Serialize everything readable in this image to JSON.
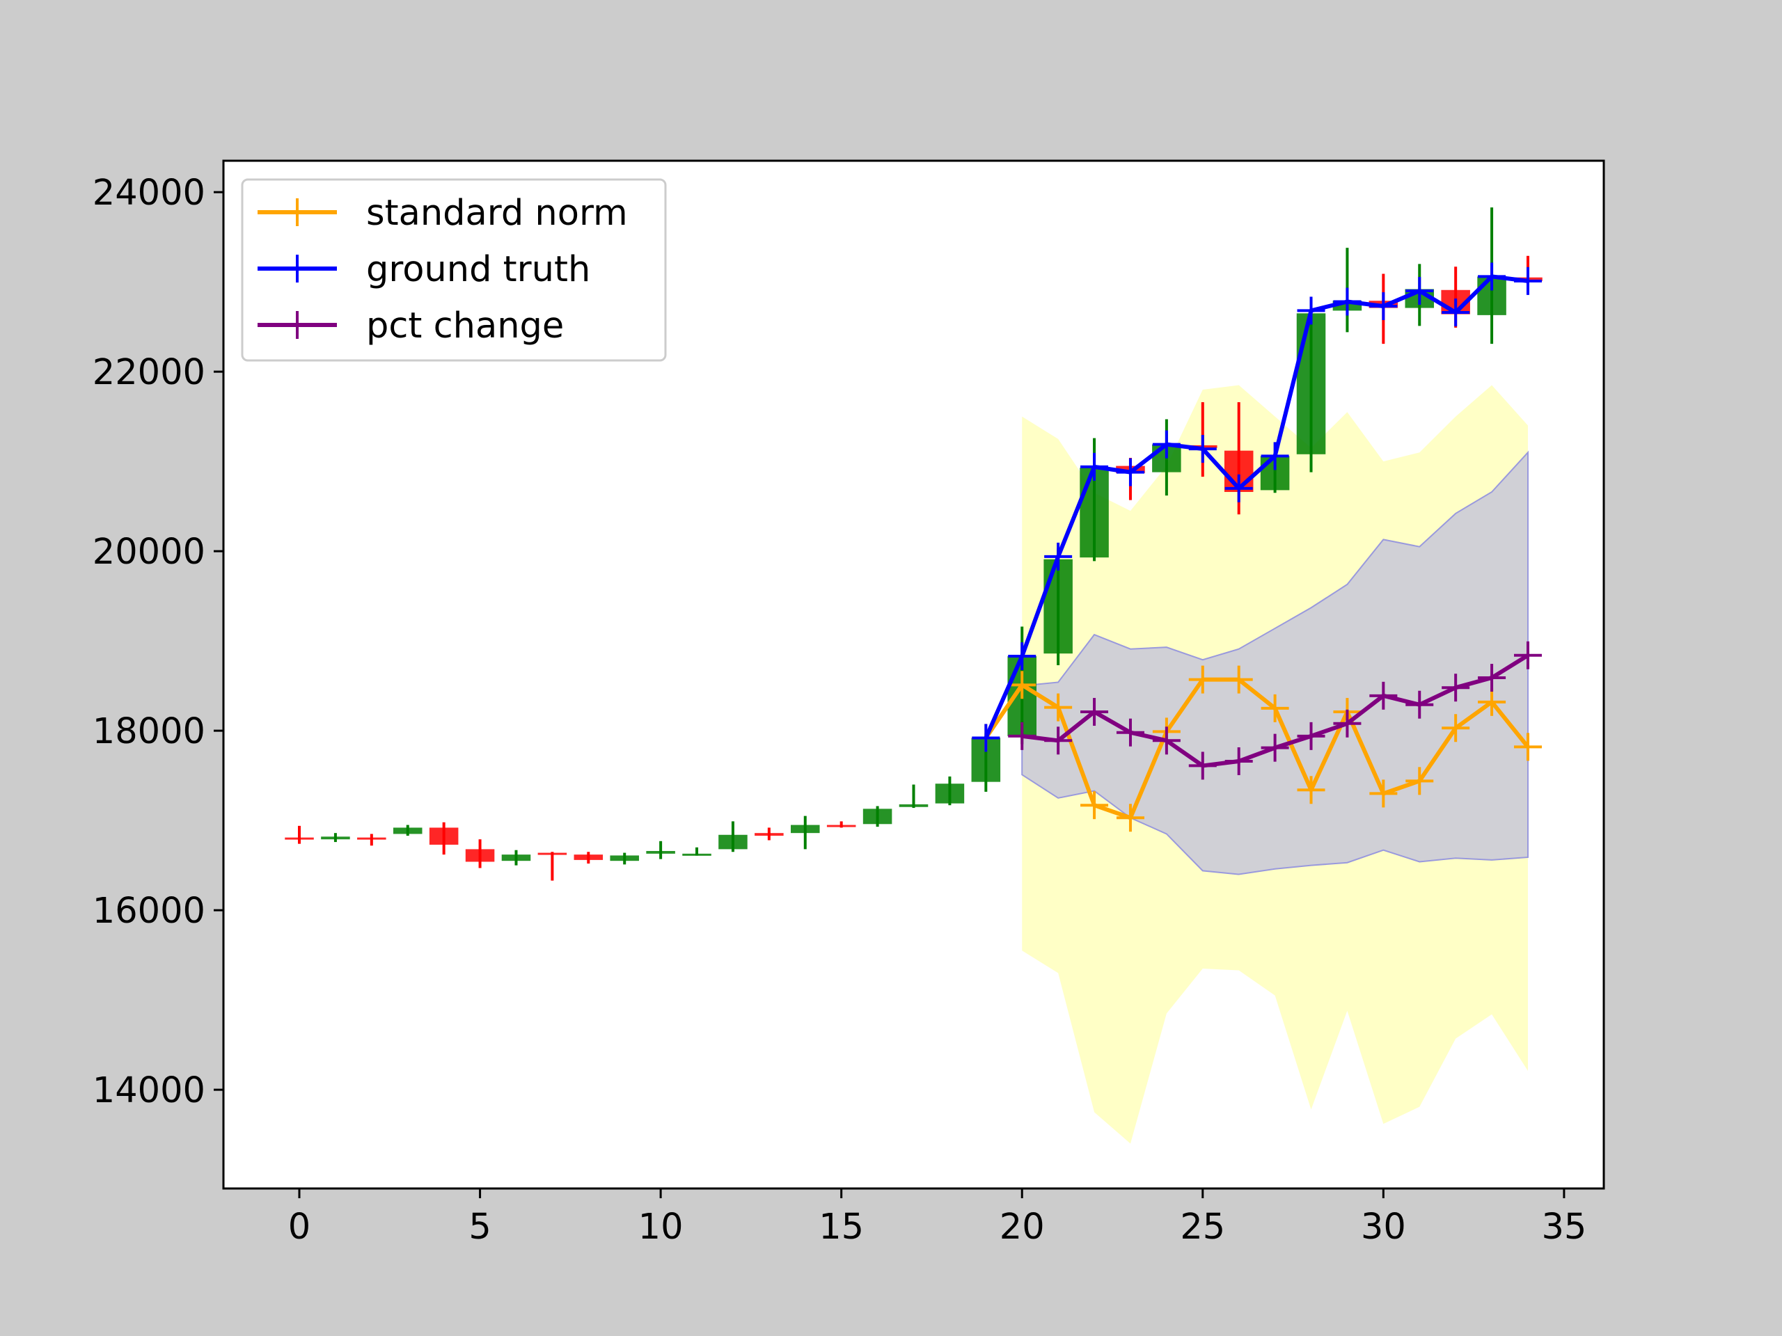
{
  "chart_data": {
    "type": "line",
    "title": "",
    "xlabel": "",
    "ylabel": "",
    "xlim": [
      -2.1,
      36.1
    ],
    "ylim": [
      12900,
      24350
    ],
    "xticks": [
      0,
      5,
      10,
      15,
      20,
      25,
      30,
      35
    ],
    "yticks": [
      14000,
      16000,
      18000,
      20000,
      22000,
      24000
    ],
    "legend": "top-left",
    "grid": false,
    "colors": {
      "up": "#008000",
      "down": "#ff0000",
      "standard_norm": "#ffa500",
      "ground_truth": "#0000ff",
      "pct_change": "#800080",
      "outer_band": "#ffffc0",
      "inner_band": "#c8c8d8"
    },
    "candles": [
      {
        "x": 0,
        "open": 16810,
        "close": 16800,
        "high": 16940,
        "low": 16740
      },
      {
        "x": 1,
        "open": 16790,
        "close": 16820,
        "high": 16860,
        "low": 16760
      },
      {
        "x": 2,
        "open": 16810,
        "close": 16800,
        "high": 16850,
        "low": 16720
      },
      {
        "x": 3,
        "open": 16850,
        "close": 16920,
        "high": 16950,
        "low": 16830
      },
      {
        "x": 4,
        "open": 16920,
        "close": 16730,
        "high": 16980,
        "low": 16620
      },
      {
        "x": 5,
        "open": 16680,
        "close": 16540,
        "high": 16790,
        "low": 16470
      },
      {
        "x": 6,
        "open": 16550,
        "close": 16620,
        "high": 16670,
        "low": 16500
      },
      {
        "x": 7,
        "open": 16640,
        "close": 16620,
        "high": 16650,
        "low": 16330
      },
      {
        "x": 8,
        "open": 16620,
        "close": 16560,
        "high": 16650,
        "low": 16520
      },
      {
        "x": 9,
        "open": 16550,
        "close": 16610,
        "high": 16640,
        "low": 16510
      },
      {
        "x": 10,
        "open": 16630,
        "close": 16660,
        "high": 16770,
        "low": 16570
      },
      {
        "x": 11,
        "open": 16610,
        "close": 16630,
        "high": 16700,
        "low": 16610
      },
      {
        "x": 12,
        "open": 16680,
        "close": 16840,
        "high": 16990,
        "low": 16650
      },
      {
        "x": 13,
        "open": 16860,
        "close": 16830,
        "high": 16920,
        "low": 16780
      },
      {
        "x": 14,
        "open": 16860,
        "close": 16950,
        "high": 17050,
        "low": 16680
      },
      {
        "x": 15,
        "open": 16950,
        "close": 16940,
        "high": 16990,
        "low": 16920
      },
      {
        "x": 16,
        "open": 16960,
        "close": 17130,
        "high": 17160,
        "low": 16930
      },
      {
        "x": 17,
        "open": 17150,
        "close": 17180,
        "high": 17400,
        "low": 17140
      },
      {
        "x": 18,
        "open": 17190,
        "close": 17410,
        "high": 17490,
        "low": 17170
      },
      {
        "x": 19,
        "open": 17430,
        "close": 17920,
        "high": 17970,
        "low": 17320
      },
      {
        "x": 20,
        "open": 17940,
        "close": 18830,
        "high": 19160,
        "low": 17850
      },
      {
        "x": 21,
        "open": 18860,
        "close": 19910,
        "high": 20030,
        "low": 18730
      },
      {
        "x": 22,
        "open": 19930,
        "close": 20930,
        "high": 21260,
        "low": 19890
      },
      {
        "x": 23,
        "open": 20950,
        "close": 20870,
        "high": 21040,
        "low": 20570
      },
      {
        "x": 24,
        "open": 20880,
        "close": 21190,
        "high": 21470,
        "low": 20620
      },
      {
        "x": 25,
        "open": 21180,
        "close": 21150,
        "high": 21660,
        "low": 20830
      },
      {
        "x": 26,
        "open": 21120,
        "close": 20660,
        "high": 21660,
        "low": 20410
      },
      {
        "x": 27,
        "open": 20680,
        "close": 21060,
        "high": 21090,
        "low": 20650
      },
      {
        "x": 28,
        "open": 21080,
        "close": 22650,
        "high": 22800,
        "low": 20880
      },
      {
        "x": 29,
        "open": 22680,
        "close": 22790,
        "high": 23380,
        "low": 22440
      },
      {
        "x": 30,
        "open": 22790,
        "close": 22710,
        "high": 23090,
        "low": 22310
      },
      {
        "x": 31,
        "open": 22710,
        "close": 22920,
        "high": 23200,
        "low": 22510
      },
      {
        "x": 32,
        "open": 22910,
        "close": 22640,
        "high": 23170,
        "low": 22490
      },
      {
        "x": 33,
        "open": 22630,
        "close": 23060,
        "high": 23830,
        "low": 22310
      },
      {
        "x": 34,
        "open": 23050,
        "close": 23010,
        "high": 23290,
        "low": 22880
      }
    ],
    "bands": [
      {
        "name": "outer",
        "x": [
          20,
          21,
          22,
          23,
          24,
          25,
          26,
          27,
          28,
          29,
          30,
          31,
          32,
          33,
          34
        ],
        "upper": [
          21500,
          21250,
          20650,
          20450,
          20950,
          21800,
          21850,
          21500,
          21150,
          21550,
          21000,
          21100,
          21500,
          21850,
          21400
        ],
        "lower": [
          15550,
          15300,
          13750,
          13400,
          14850,
          15350,
          15330,
          15050,
          13780,
          14880,
          13620,
          13810,
          14570,
          14840,
          14210
        ]
      },
      {
        "name": "inner",
        "x": [
          20,
          21,
          22,
          23,
          24,
          25,
          26,
          27,
          28,
          29,
          30,
          31,
          32,
          33,
          34
        ],
        "upper": [
          18500,
          18540,
          19070,
          18910,
          18930,
          18790,
          18910,
          19140,
          19370,
          19630,
          20130,
          20050,
          20420,
          20660,
          21100
        ],
        "lower": [
          17510,
          17250,
          17330,
          17030,
          16850,
          16440,
          16400,
          16460,
          16500,
          16530,
          16670,
          16540,
          16580,
          16560,
          16590
        ]
      }
    ],
    "series": [
      {
        "name": "standard norm",
        "x": [
          19,
          20,
          21,
          22,
          23,
          24,
          25,
          26,
          27,
          28,
          29,
          30,
          31,
          32,
          33,
          34
        ],
        "values": [
          17920,
          18510,
          18260,
          17170,
          17030,
          17990,
          18570,
          18570,
          18250,
          17340,
          18210,
          17300,
          17440,
          18030,
          18320,
          17820
        ]
      },
      {
        "name": "ground truth",
        "x": [
          19,
          20,
          21,
          22,
          23,
          24,
          25,
          26,
          27,
          28,
          29,
          30,
          31,
          32,
          33,
          34
        ],
        "values": [
          17920,
          18830,
          19940,
          20940,
          20880,
          21190,
          21140,
          20700,
          21060,
          22680,
          22780,
          22730,
          22900,
          22660,
          23060,
          23010
        ]
      },
      {
        "name": "pct change",
        "x": [
          20,
          21,
          22,
          23,
          24,
          25,
          26,
          27,
          28,
          29,
          30,
          31,
          32,
          33,
          34
        ],
        "values": [
          17940,
          17890,
          18210,
          17980,
          17890,
          17610,
          17660,
          17810,
          17940,
          18080,
          18390,
          18290,
          18480,
          18590,
          18840
        ]
      }
    ]
  }
}
